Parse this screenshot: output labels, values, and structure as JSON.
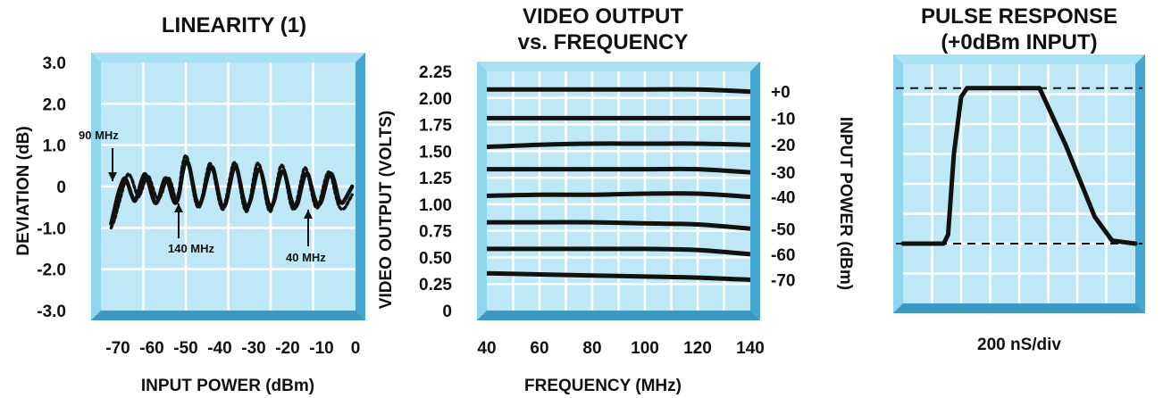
{
  "chart_data": [
    {
      "type": "line",
      "title": "LINEARITY (1)",
      "xlabel": "INPUT POWER (dBm)",
      "ylabel": "DEVIATION (dB)",
      "xlim": [
        -75,
        0
      ],
      "ylim": [
        -3.0,
        3.0
      ],
      "x_tick_labels": [
        "-70",
        "-60",
        "-50",
        "-40",
        "-30",
        "-20",
        "-10",
        "0"
      ],
      "x_ticks": [
        -70,
        -60,
        -50,
        -40,
        -30,
        -20,
        -10,
        0
      ],
      "y_tick_labels": [
        "3.0",
        "2.0",
        "1.0",
        "0",
        "-1.0",
        "-2.0",
        "-3.0"
      ],
      "y_ticks": [
        3,
        2,
        1,
        0,
        -1,
        -2,
        -3
      ],
      "grid": true,
      "series": [
        {
          "x": [
            -72,
            -71,
            -70,
            -69,
            -68,
            -67,
            -66,
            -65,
            -64,
            -63,
            -62,
            -61,
            -60,
            -59,
            -58,
            -57,
            -56,
            -55,
            -54,
            -53,
            -52,
            -51,
            -50,
            -49,
            -48,
            -47,
            -46,
            -45,
            -44,
            -43,
            -42,
            -41,
            -40,
            -39,
            -38,
            -37,
            -36,
            -35,
            -34,
            -33,
            -32,
            -31,
            -30,
            -29,
            -28,
            -27,
            -26,
            -25,
            -24,
            -23,
            -22,
            -21,
            -20,
            -19,
            -18,
            -17,
            -16,
            -15,
            -14,
            -13,
            -12,
            -11,
            -10,
            -9,
            -8,
            -7,
            -6,
            -5,
            -4,
            -3,
            -2,
            -1
          ],
          "values": [
            -0.9,
            -0.55,
            -0.2,
            0.05,
            0.2,
            0.05,
            -0.2,
            -0.35,
            -0.15,
            0.15,
            0.3,
            0.1,
            -0.2,
            -0.4,
            -0.3,
            0.0,
            0.2,
            0.05,
            -0.25,
            -0.4,
            -0.2,
            0.3,
            0.6,
            0.5,
            0.1,
            -0.3,
            -0.45,
            -0.25,
            0.1,
            0.4,
            0.45,
            0.1,
            -0.3,
            -0.5,
            -0.35,
            0.05,
            0.4,
            0.45,
            0.1,
            -0.3,
            -0.5,
            -0.35,
            0.0,
            0.35,
            0.4,
            0.1,
            -0.3,
            -0.5,
            -0.35,
            0.0,
            0.3,
            0.35,
            0.05,
            -0.3,
            -0.5,
            -0.4,
            -0.05,
            0.25,
            0.3,
            0.0,
            -0.3,
            -0.45,
            -0.35,
            -0.05,
            0.25,
            0.3,
            0.05,
            -0.3,
            -0.4,
            -0.3,
            -0.15,
            0.0
          ]
        },
        {
          "x": [
            -72,
            -71,
            -70,
            -69,
            -68,
            -67,
            -66,
            -65,
            -64,
            -63,
            -62,
            -61,
            -60,
            -59,
            -58,
            -57,
            -56,
            -55,
            -54,
            -53,
            -52,
            -51,
            -50,
            -49,
            -48,
            -47,
            -46,
            -45,
            -44,
            -43,
            -42,
            -41,
            -40,
            -39,
            -38,
            -37,
            -36,
            -35,
            -34,
            -33,
            -32,
            -31,
            -30,
            -29,
            -28,
            -27,
            -26,
            -25,
            -24,
            -23,
            -22,
            -21,
            -20,
            -19,
            -18,
            -17,
            -16,
            -15,
            -14,
            -13,
            -12,
            -11,
            -10,
            -9,
            -8,
            -7,
            -6,
            -5,
            -4,
            -3,
            -2,
            -1
          ],
          "values": [
            -1.0,
            -0.8,
            -0.5,
            -0.2,
            0.1,
            0.3,
            0.2,
            -0.05,
            -0.25,
            -0.1,
            0.15,
            0.25,
            0.05,
            -0.2,
            -0.3,
            -0.15,
            0.1,
            0.2,
            0.0,
            -0.3,
            -0.1,
            0.5,
            0.75,
            0.5,
            0.0,
            -0.4,
            -0.5,
            -0.2,
            0.25,
            0.55,
            0.4,
            0.0,
            -0.4,
            -0.55,
            -0.25,
            0.2,
            0.55,
            0.5,
            0.0,
            -0.45,
            -0.6,
            -0.3,
            0.2,
            0.55,
            0.45,
            0.0,
            -0.45,
            -0.6,
            -0.3,
            0.15,
            0.5,
            0.4,
            -0.05,
            -0.45,
            -0.55,
            -0.25,
            0.15,
            0.45,
            0.3,
            -0.1,
            -0.45,
            -0.5,
            -0.2,
            0.15,
            0.35,
            0.2,
            -0.15,
            -0.45,
            -0.55,
            -0.5,
            -0.35,
            -0.2
          ]
        }
      ],
      "annotations": [
        {
          "text": "90 MHz",
          "x": -70,
          "y": 0.5
        },
        {
          "text": "140 MHz",
          "x": -49,
          "y": -0.3
        },
        {
          "text": "40 MHz",
          "x": -12,
          "y": -0.3
        }
      ]
    },
    {
      "type": "line",
      "title": "VIDEO OUTPUT",
      "subtitle": "vs. FREQUENCY",
      "xlabel": "FREQUENCY (MHz)",
      "ylabel": "VIDEO OUTPUT (VOLTS)",
      "ylabel_right": "INPUT POWER (dBm)",
      "xlim": [
        40,
        140
      ],
      "ylim": [
        0,
        2.25
      ],
      "x_tick_labels": [
        "40",
        "60",
        "80",
        "100",
        "120",
        "140"
      ],
      "x_ticks": [
        40,
        60,
        80,
        100,
        120,
        140
      ],
      "y_tick_labels": [
        "2.25",
        "2.00",
        "1.75",
        "1.50",
        "1.25",
        "1.00",
        "0.75",
        "0.50",
        "0.25",
        "0"
      ],
      "y_ticks": [
        2.25,
        2.0,
        1.75,
        1.5,
        1.25,
        1.0,
        0.75,
        0.5,
        0.25,
        0
      ],
      "right_tick_labels": [
        "+0",
        "-10",
        "-20",
        "-30",
        "-40",
        "-50",
        "-60",
        "-70"
      ],
      "grid": true,
      "x": [
        40,
        60,
        80,
        100,
        120,
        140
      ],
      "series": [
        {
          "name": "+0",
          "values": [
            2.08,
            2.08,
            2.08,
            2.08,
            2.08,
            2.06
          ]
        },
        {
          "name": "-10",
          "values": [
            1.81,
            1.81,
            1.81,
            1.81,
            1.81,
            1.81
          ]
        },
        {
          "name": "-20",
          "values": [
            1.54,
            1.56,
            1.57,
            1.57,
            1.57,
            1.56
          ]
        },
        {
          "name": "-30",
          "values": [
            1.33,
            1.33,
            1.33,
            1.33,
            1.33,
            1.3
          ]
        },
        {
          "name": "-40",
          "values": [
            1.08,
            1.09,
            1.09,
            1.1,
            1.1,
            1.07
          ]
        },
        {
          "name": "-50",
          "values": [
            0.83,
            0.83,
            0.83,
            0.82,
            0.81,
            0.77
          ]
        },
        {
          "name": "-60",
          "values": [
            0.58,
            0.58,
            0.58,
            0.58,
            0.57,
            0.53
          ]
        },
        {
          "name": "-70",
          "values": [
            0.35,
            0.34,
            0.33,
            0.32,
            0.31,
            0.29
          ]
        }
      ]
    },
    {
      "type": "line",
      "title": "PULSE RESPONSE",
      "subtitle": "(+0dBm INPUT)",
      "xlabel": "200 nS/div",
      "xlim": [
        0,
        8
      ],
      "ylim": [
        0,
        8
      ],
      "grid": true,
      "series": [
        {
          "x": [
            0,
            1.4,
            1.55,
            1.75,
            2.0,
            2.2,
            3.0,
            4.0,
            4.7,
            5.6,
            6.6,
            7.2,
            8.0
          ],
          "values": [
            2.0,
            2.0,
            2.3,
            5.0,
            6.9,
            7.2,
            7.2,
            7.2,
            7.2,
            5.3,
            2.9,
            2.1,
            2.0
          ]
        }
      ],
      "reference_levels": [
        7.2,
        2.0
      ]
    }
  ]
}
